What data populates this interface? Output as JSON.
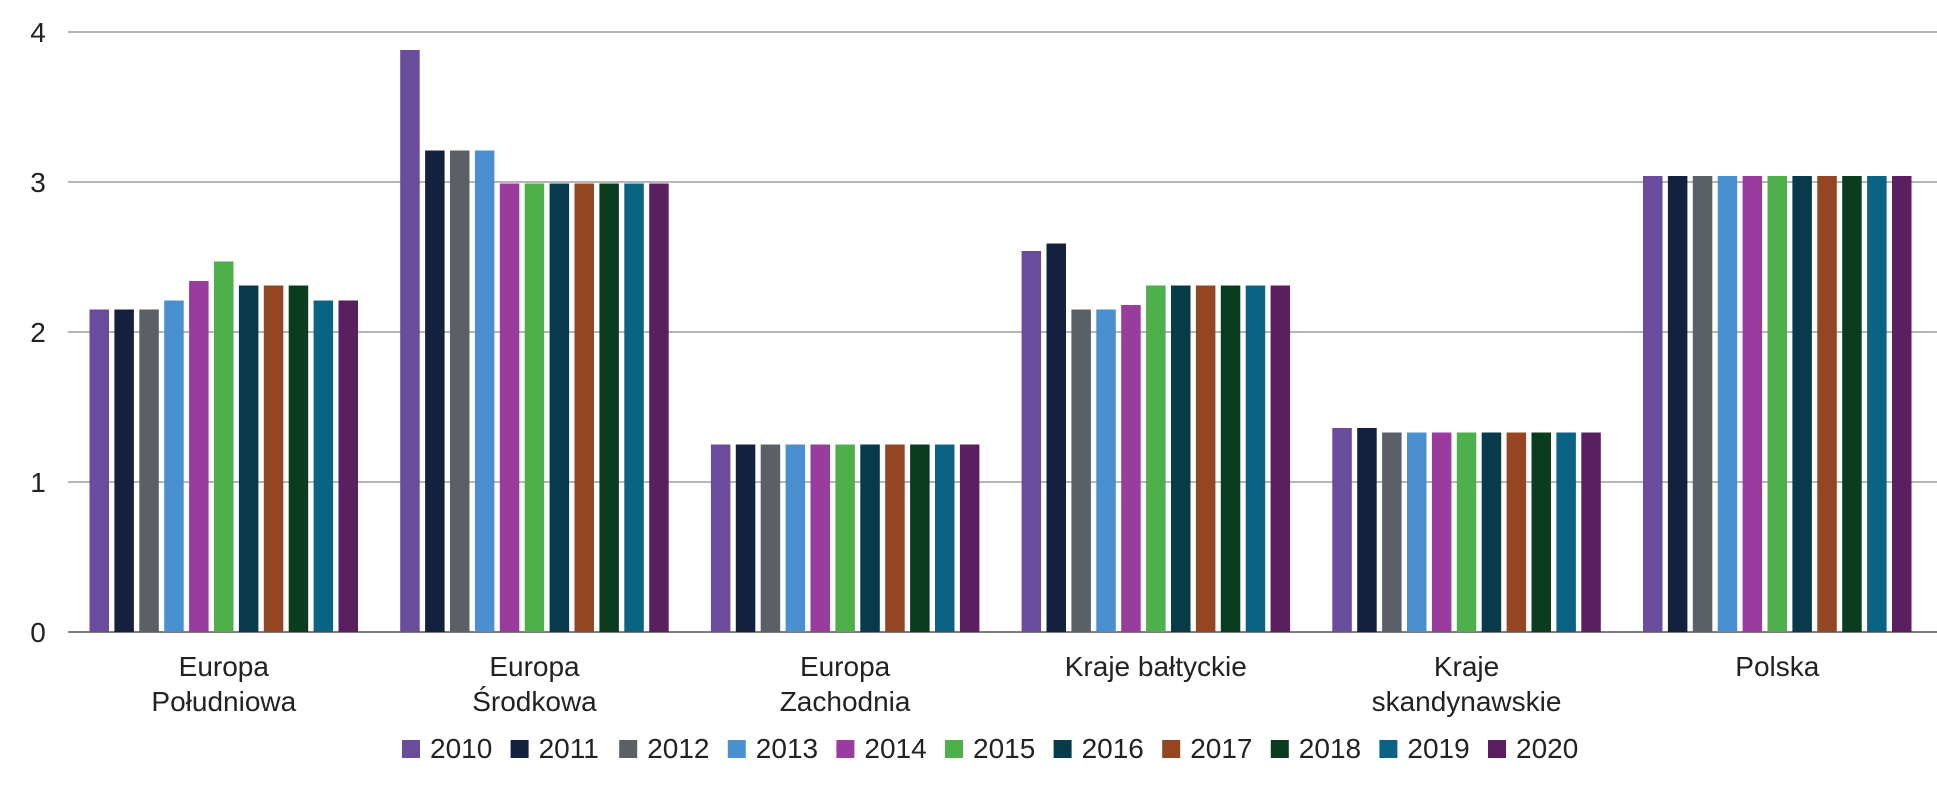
{
  "chart_data": {
    "type": "bar",
    "title": "",
    "xlabel": "",
    "ylabel": "",
    "ylim": [
      0,
      4
    ],
    "yticks": [
      "0",
      "1",
      "2",
      "3",
      "4"
    ],
    "grid": true,
    "legend_position": "bottom",
    "categories": [
      [
        "Europa",
        "Południowa"
      ],
      [
        "Europa",
        "Środkowa"
      ],
      [
        "Europa",
        "Zachodnia"
      ],
      [
        "Kraje bałtyckie"
      ],
      [
        "Kraje",
        "skandynawskie"
      ],
      [
        "Polska"
      ]
    ],
    "series": [
      {
        "name": "2010",
        "color": "#6a4c9c",
        "values": [
          2.15,
          3.88,
          1.25,
          2.54,
          1.36,
          3.04
        ]
      },
      {
        "name": "2011",
        "color": "#13213f",
        "values": [
          2.15,
          3.21,
          1.25,
          2.59,
          1.36,
          3.04
        ]
      },
      {
        "name": "2012",
        "color": "#5b5f66",
        "values": [
          2.15,
          3.21,
          1.25,
          2.15,
          1.33,
          3.04
        ]
      },
      {
        "name": "2013",
        "color": "#4a90d0",
        "values": [
          2.21,
          3.21,
          1.25,
          2.15,
          1.33,
          3.04
        ]
      },
      {
        "name": "2014",
        "color": "#993c9e",
        "values": [
          2.34,
          2.99,
          1.25,
          2.18,
          1.33,
          3.04
        ]
      },
      {
        "name": "2015",
        "color": "#4eb04a",
        "values": [
          2.47,
          2.99,
          1.25,
          2.31,
          1.33,
          3.04
        ]
      },
      {
        "name": "2016",
        "color": "#073a4a",
        "values": [
          2.31,
          2.99,
          1.25,
          2.31,
          1.33,
          3.04
        ]
      },
      {
        "name": "2017",
        "color": "#944522",
        "values": [
          2.31,
          2.99,
          1.25,
          2.31,
          1.33,
          3.04
        ]
      },
      {
        "name": "2018",
        "color": "#0a3d1f",
        "values": [
          2.31,
          2.99,
          1.25,
          2.31,
          1.33,
          3.04
        ]
      },
      {
        "name": "2019",
        "color": "#0b6384",
        "values": [
          2.21,
          2.99,
          1.25,
          2.31,
          1.33,
          3.04
        ]
      },
      {
        "name": "2020",
        "color": "#5a1f5f",
        "values": [
          2.21,
          2.99,
          1.25,
          2.31,
          1.33,
          3.04
        ]
      }
    ]
  }
}
